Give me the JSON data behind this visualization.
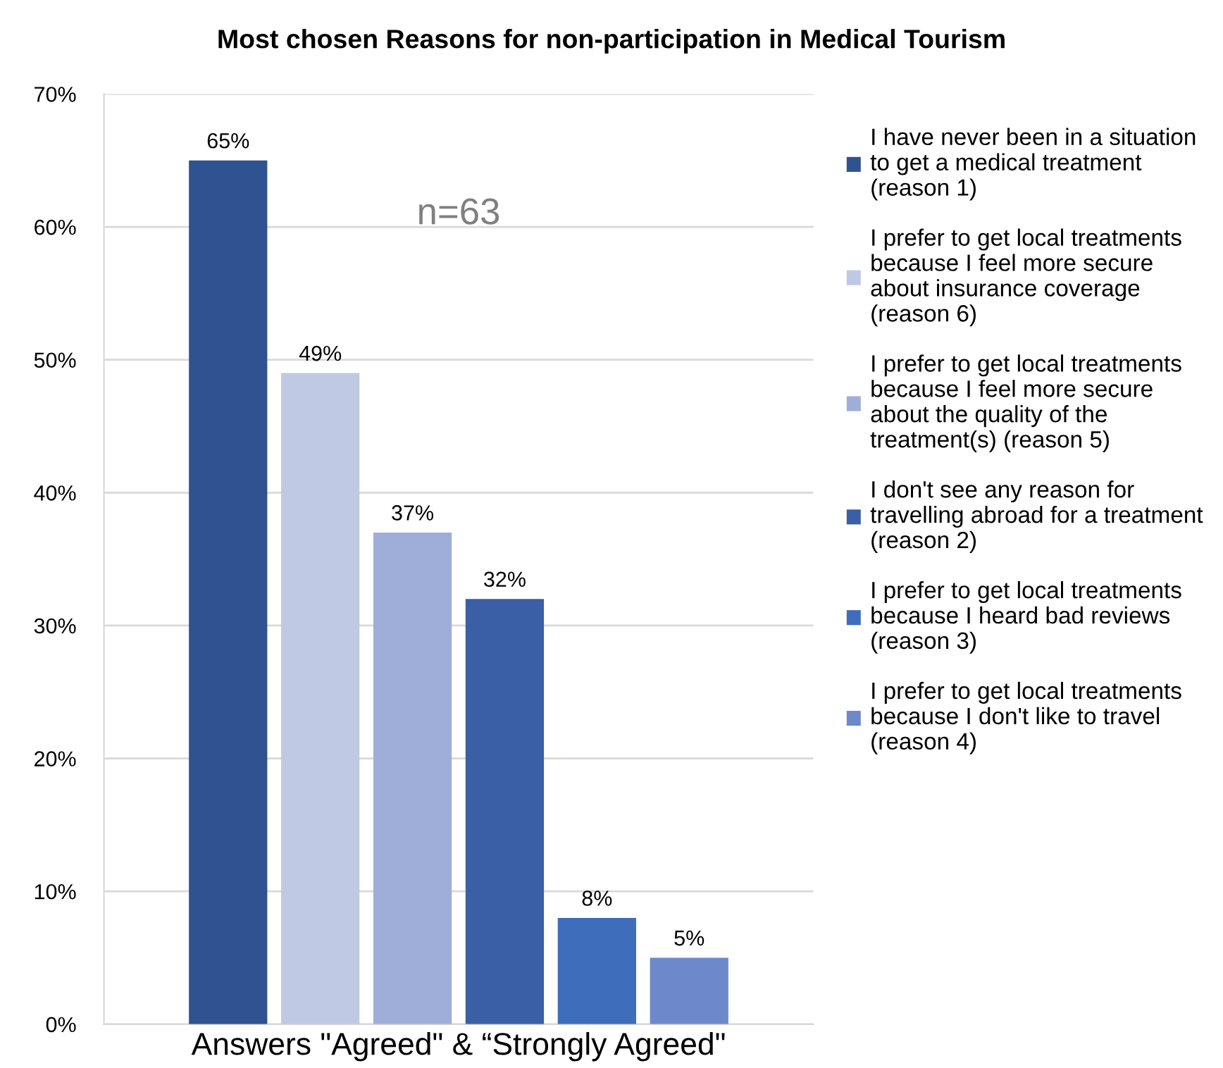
{
  "chart_data": {
    "type": "bar",
    "title": "Most chosen Reasons for non-participation in Medical Tourism",
    "categories": [
      "Answers \"Agreed\" & “Strongly Agreed\""
    ],
    "series": [
      {
        "name": "I have never been in a situation\nto get a medical treatment\n(reason 1)",
        "color": "#2f5290",
        "values": [
          65
        ],
        "value_labels": [
          "65%"
        ]
      },
      {
        "name": "I prefer to get local treatments\nbecause I feel more secure\nabout insurance coverage\n(reason 6)",
        "color": "#c0c9e4",
        "values": [
          49
        ],
        "value_labels": [
          "49%"
        ]
      },
      {
        "name": "I prefer to get local treatments\nbecause I feel more secure\nabout the quality of the\ntreatment(s) (reason 5)",
        "color": "#9faed8",
        "values": [
          37
        ],
        "value_labels": [
          "37%"
        ]
      },
      {
        "name": "I don't see any reason for\ntravelling abroad for a treatment\n(reason 2)",
        "color": "#3a5fa6",
        "values": [
          32
        ],
        "value_labels": [
          "32%"
        ]
      },
      {
        "name": "I prefer to get local treatments\nbecause I heard bad reviews\n(reason 3)",
        "color": "#3e6dbb",
        "values": [
          8
        ],
        "value_labels": [
          "8%"
        ]
      },
      {
        "name": "I prefer to get local treatments\nbecause I don't like to travel\n(reason 4)",
        "color": "#6e89cb",
        "values": [
          5
        ],
        "value_labels": [
          "5%"
        ]
      }
    ],
    "ylim": [
      0,
      70
    ],
    "yticks": [
      {
        "value": 0,
        "label": "0%"
      },
      {
        "value": 10,
        "label": "10%"
      },
      {
        "value": 20,
        "label": "20%"
      },
      {
        "value": 30,
        "label": "30%"
      },
      {
        "value": 40,
        "label": "40%"
      },
      {
        "value": 50,
        "label": "50%"
      },
      {
        "value": 60,
        "label": "60%"
      },
      {
        "value": 70,
        "label": "70%"
      }
    ],
    "grid": "y",
    "legend": "right",
    "annotations": [
      "n=63"
    ]
  }
}
